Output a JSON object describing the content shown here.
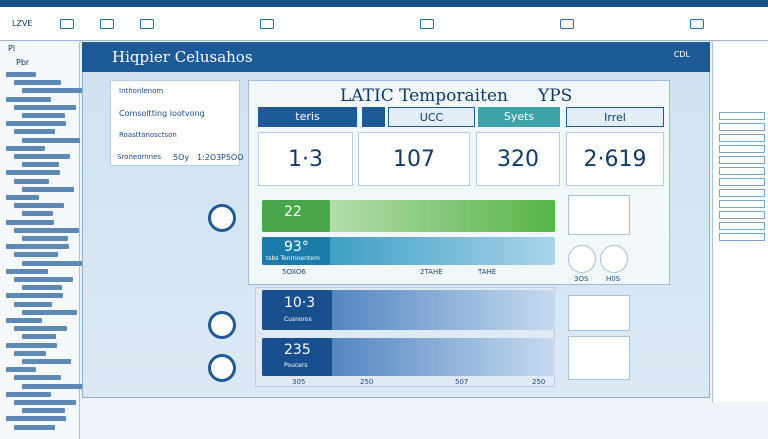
{
  "toolbar": {
    "label": "LZVE"
  },
  "sidebar": {
    "header": "Pl",
    "search": "Pbr"
  },
  "app": {
    "title": "Hiqpier Celusahos",
    "tag": "CDL"
  },
  "summary": {
    "heading": "Inthonlenom",
    "line": "Comsoltting lootvong",
    "label": "Roasttanosctson",
    "footer": "Sroneornnes",
    "values": [
      "5Oy",
      "1:2O3",
      "P5OO"
    ]
  },
  "panel": {
    "title": "LATIC Temporaiten",
    "badge": "YPS",
    "tabs": [
      "teris",
      "UCC",
      "Syets",
      "Irrel"
    ],
    "metrics": [
      "1·3",
      "107",
      "320",
      "2·619"
    ]
  },
  "bars": [
    {
      "value": "22"
    },
    {
      "value": "93°",
      "label": "tsbs Tenrnnentem"
    }
  ],
  "bar_labels": [
    "5OXO6",
    "2TAHE",
    "TAHE"
  ],
  "icons": [
    "3OS",
    "H0S"
  ],
  "lower": {
    "rows": [
      {
        "value": "10·3",
        "label": "Cusnoros"
      },
      {
        "value": "235",
        "label": "Poucers"
      }
    ],
    "axis": [
      "305",
      "250",
      "507",
      "250"
    ]
  }
}
